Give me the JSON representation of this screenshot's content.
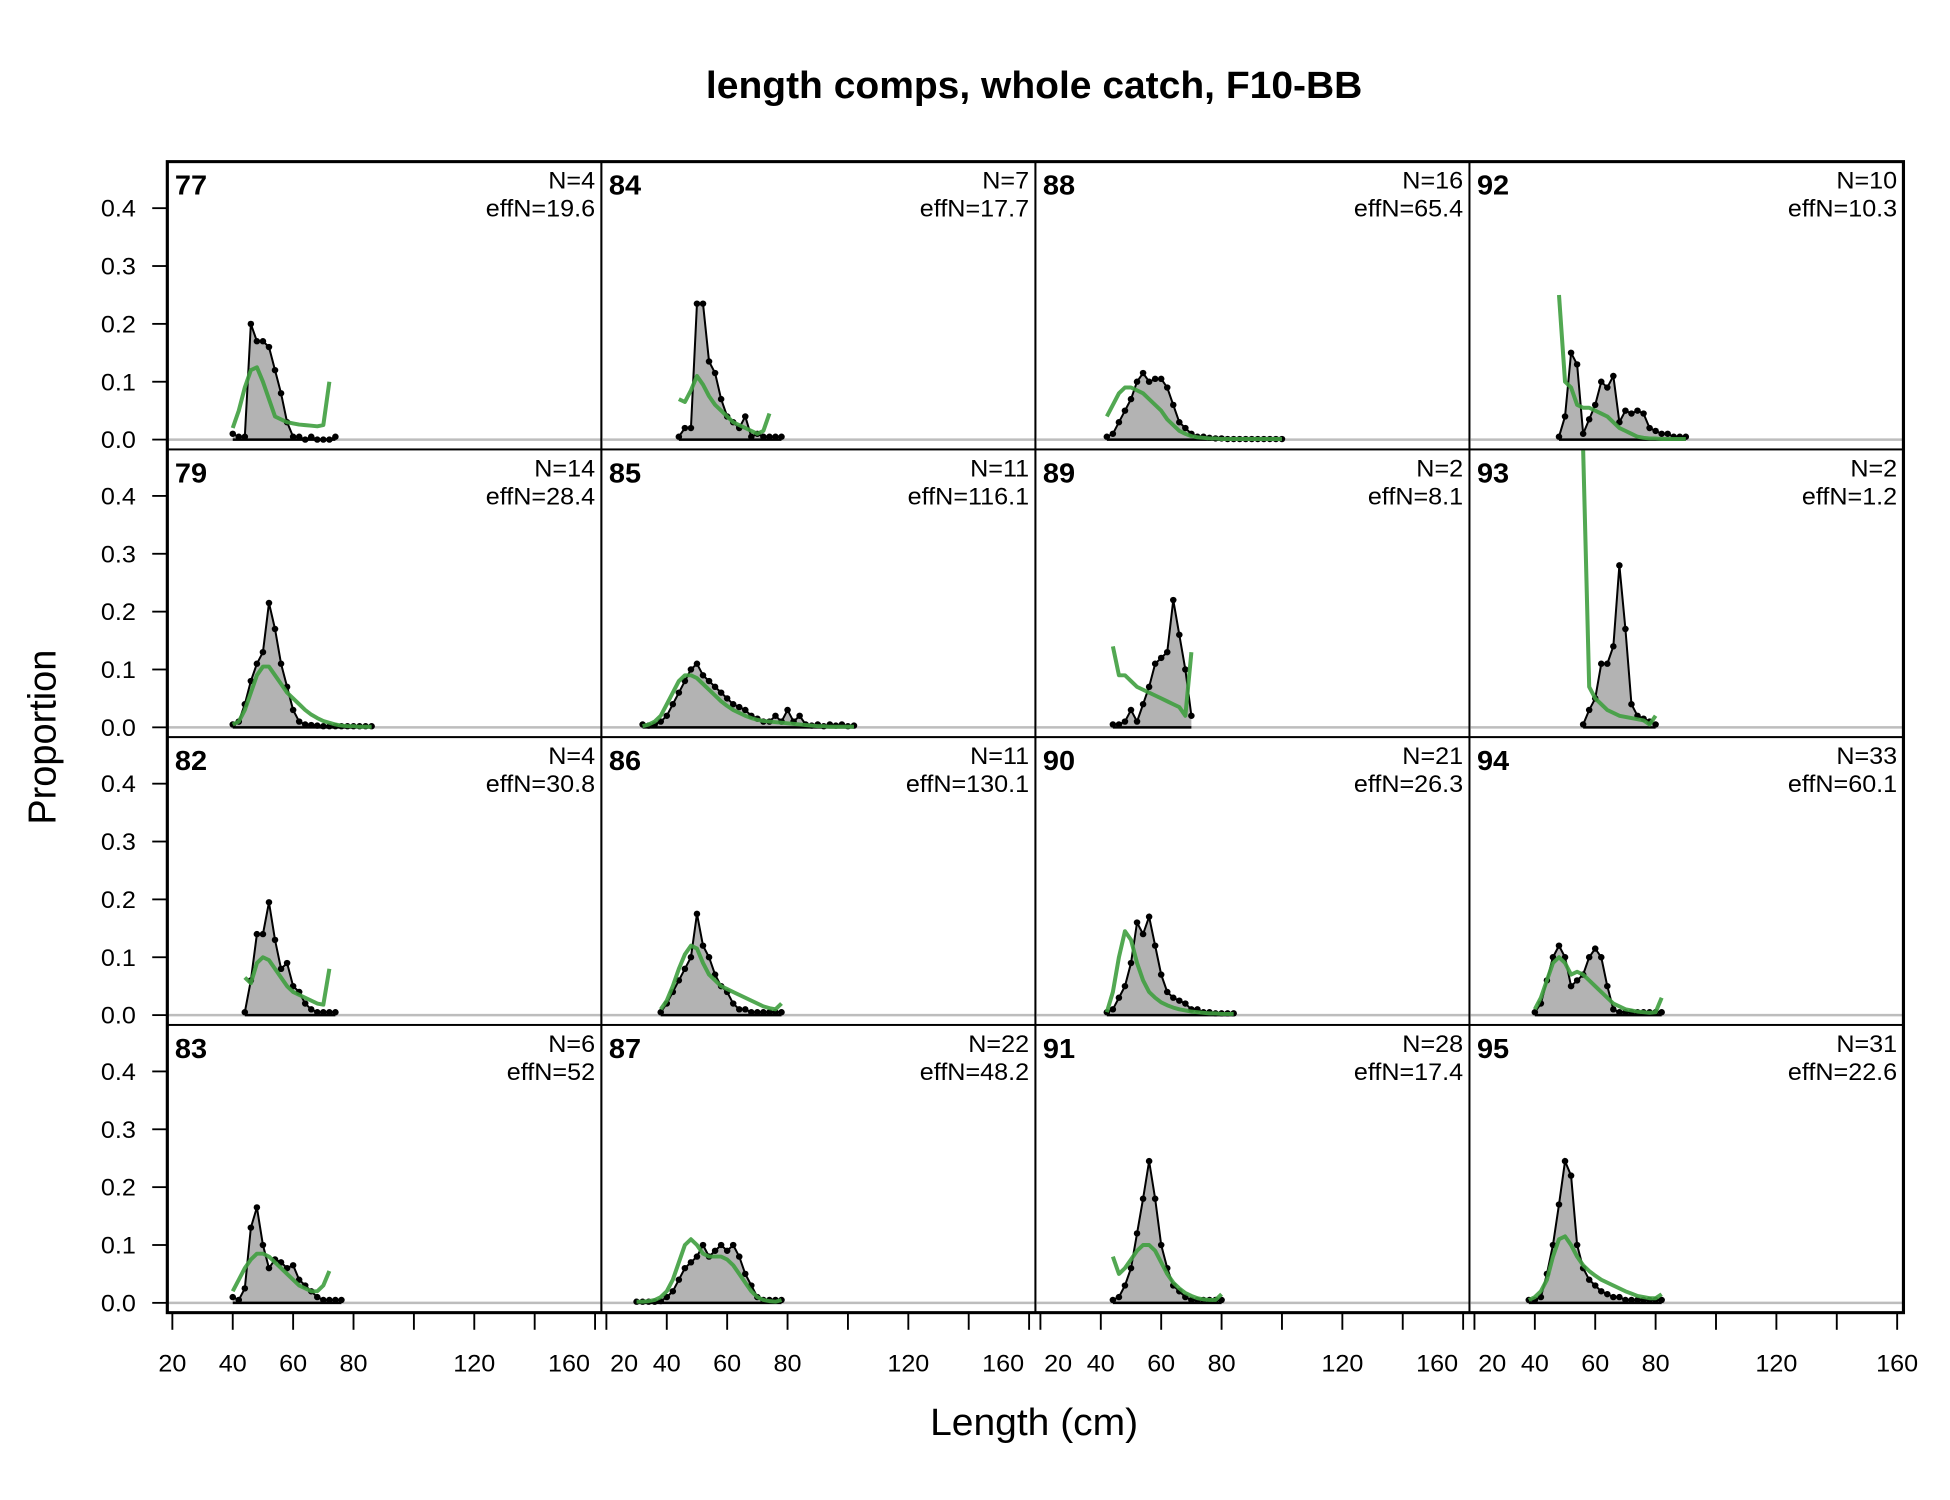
{
  "chart_data": {
    "type": "line",
    "title": "length comps, whole catch, F10-BB",
    "xlabel": "Length (cm)",
    "ylabel": "Proportion",
    "xlim": [
      20,
      160
    ],
    "ylim": [
      0,
      0.48
    ],
    "x_ticks": [
      20,
      40,
      60,
      80,
      100,
      120,
      140,
      160
    ],
    "x_tick_labels": [
      "20",
      "40",
      "60",
      "80",
      "",
      "120",
      "",
      "160"
    ],
    "y_ticks": [
      0.0,
      0.1,
      0.2,
      0.3,
      0.4
    ],
    "y_tick_labels": [
      "0.0",
      "0.1",
      "0.2",
      "0.3",
      "0.4"
    ],
    "series_styles": {
      "observed_fill": "#b3b3b3",
      "observed_line": "#000000",
      "expected_line": "#3f9e3f",
      "zero_line": "#bdbdbd"
    },
    "bin_width": 2,
    "panels": [
      {
        "year": "77",
        "n_label": "N=4",
        "effn_label": "effN=19.6",
        "obs": {
          "start": 40,
          "values": [
            0.01,
            0.005,
            0.005,
            0.2,
            0.17,
            0.17,
            0.16,
            0.12,
            0.08,
            0.03,
            0.005,
            0.005,
            0,
            0.005,
            0,
            0,
            0,
            0.005
          ]
        },
        "exp": {
          "start": 40,
          "values": [
            0.02,
            0.05,
            0.09,
            0.12,
            0.125,
            0.1,
            0.07,
            0.04,
            0.035,
            0.03,
            0.028,
            0.026,
            0.025,
            0.024,
            0.023,
            0.025,
            0.1
          ]
        }
      },
      {
        "year": "84",
        "n_label": "N=7",
        "effn_label": "effN=17.7",
        "obs": {
          "start": 44,
          "values": [
            0.005,
            0.02,
            0.02,
            0.235,
            0.235,
            0.135,
            0.115,
            0.07,
            0.04,
            0.03,
            0.02,
            0.04,
            0.005,
            0.01,
            0.005,
            0.005,
            0.005,
            0.005
          ]
        },
        "exp": {
          "start": 44,
          "values": [
            0.07,
            0.065,
            0.085,
            0.11,
            0.095,
            0.075,
            0.06,
            0.05,
            0.04,
            0.03,
            0.025,
            0.02,
            0.015,
            0.01,
            0.015,
            0.045
          ]
        }
      },
      {
        "year": "88",
        "n_label": "N=16",
        "effn_label": "effN=65.4",
        "obs": {
          "start": 42,
          "values": [
            0.005,
            0.01,
            0.03,
            0.05,
            0.07,
            0.1,
            0.115,
            0.1,
            0.105,
            0.105,
            0.09,
            0.06,
            0.03,
            0.02,
            0.01,
            0.005,
            0.005,
            0.003,
            0.002,
            0.002,
            0.001,
            0.001,
            0.001,
            0.001,
            0.001,
            0.001,
            0.001,
            0.001,
            0.001,
            0.001
          ]
        },
        "exp": {
          "start": 42,
          "values": [
            0.04,
            0.06,
            0.08,
            0.09,
            0.09,
            0.085,
            0.08,
            0.07,
            0.06,
            0.05,
            0.035,
            0.025,
            0.015,
            0.01,
            0.006,
            0.004,
            0.003,
            0.002,
            0.002,
            0.001,
            0.001,
            0.001,
            0.001,
            0.001,
            0.001,
            0.001,
            0.001,
            0.001,
            0.001,
            0.001
          ]
        }
      },
      {
        "year": "92",
        "n_label": "N=10",
        "effn_label": "effN=10.3",
        "obs": {
          "start": 48,
          "values": [
            0.005,
            0.04,
            0.15,
            0.13,
            0.01,
            0.035,
            0.06,
            0.1,
            0.09,
            0.11,
            0.03,
            0.05,
            0.045,
            0.05,
            0.045,
            0.02,
            0.015,
            0.01,
            0.01,
            0.005,
            0.005,
            0.005
          ]
        },
        "exp": {
          "start": 48,
          "values": [
            0.25,
            0.1,
            0.09,
            0.06,
            0.055,
            0.055,
            0.05,
            0.045,
            0.04,
            0.03,
            0.02,
            0.015,
            0.01,
            0.005,
            0.003,
            0.002,
            0.002,
            0.001,
            0.001,
            0.001,
            0.001,
            0.001
          ]
        }
      },
      {
        "year": "79",
        "n_label": "N=14",
        "effn_label": "effN=28.4",
        "obs": {
          "start": 40,
          "values": [
            0.005,
            0.01,
            0.04,
            0.08,
            0.11,
            0.13,
            0.215,
            0.17,
            0.11,
            0.07,
            0.03,
            0.01,
            0.005,
            0.004,
            0.003,
            0.002,
            0.002,
            0.002,
            0.002,
            0.002,
            0.002,
            0.002,
            0.002,
            0.002
          ]
        },
        "exp": {
          "start": 40,
          "values": [
            0.005,
            0.01,
            0.03,
            0.06,
            0.09,
            0.105,
            0.105,
            0.09,
            0.075,
            0.06,
            0.05,
            0.04,
            0.03,
            0.022,
            0.016,
            0.011,
            0.008,
            0.005,
            0.003,
            0.002,
            0.002,
            0.001,
            0.001,
            0.001
          ]
        }
      },
      {
        "year": "85",
        "n_label": "N=11",
        "effn_label": "effN=116.1",
        "obs": {
          "start": 32,
          "values": [
            0.005,
            0.003,
            0.005,
            0.01,
            0.02,
            0.04,
            0.06,
            0.08,
            0.1,
            0.11,
            0.09,
            0.08,
            0.07,
            0.06,
            0.05,
            0.04,
            0.035,
            0.03,
            0.02,
            0.015,
            0.01,
            0.01,
            0.02,
            0.01,
            0.03,
            0.01,
            0.02,
            0.005,
            0.003,
            0.005,
            0.002,
            0.005,
            0.003,
            0.005,
            0.002,
            0.003
          ]
        },
        "exp": {
          "start": 32,
          "values": [
            0.002,
            0.005,
            0.01,
            0.02,
            0.04,
            0.06,
            0.08,
            0.09,
            0.09,
            0.085,
            0.075,
            0.065,
            0.055,
            0.045,
            0.037,
            0.03,
            0.025,
            0.02,
            0.016,
            0.013,
            0.011,
            0.01,
            0.009,
            0.008,
            0.007,
            0.006,
            0.005,
            0.004,
            0.003,
            0.002,
            0.002,
            0.001,
            0.001,
            0.001,
            0.001,
            0.001
          ]
        }
      },
      {
        "year": "89",
        "n_label": "N=2",
        "effn_label": "effN=8.1",
        "obs": {
          "start": 44,
          "values": [
            0.005,
            0.005,
            0.01,
            0.03,
            0.01,
            0.04,
            0.07,
            0.11,
            0.12,
            0.13,
            0.22,
            0.16,
            0.1,
            0.02
          ]
        },
        "exp": {
          "start": 44,
          "values": [
            0.14,
            0.09,
            0.09,
            0.08,
            0.07,
            0.065,
            0.06,
            0.055,
            0.05,
            0.045,
            0.04,
            0.035,
            0.02,
            0.13
          ]
        }
      },
      {
        "year": "93",
        "n_label": "N=2",
        "effn_label": "effN=1.2",
        "obs": {
          "start": 56,
          "values": [
            0.005,
            0.03,
            0.05,
            0.11,
            0.11,
            0.14,
            0.28,
            0.17,
            0.04,
            0.02,
            0.015,
            0.01,
            0.005
          ]
        },
        "exp": {
          "start": 56,
          "values": [
            0.48,
            0.07,
            0.05,
            0.04,
            0.03,
            0.025,
            0.02,
            0.018,
            0.016,
            0.014,
            0.012,
            0.005,
            0.02
          ]
        }
      },
      {
        "year": "82",
        "n_label": "N=4",
        "effn_label": "effN=30.8",
        "obs": {
          "start": 44,
          "values": [
            0.005,
            0.06,
            0.14,
            0.14,
            0.195,
            0.13,
            0.08,
            0.09,
            0.05,
            0.04,
            0.02,
            0.01,
            0.005,
            0.005,
            0.005,
            0.005
          ]
        },
        "exp": {
          "start": 44,
          "values": [
            0.065,
            0.055,
            0.09,
            0.1,
            0.095,
            0.08,
            0.065,
            0.05,
            0.04,
            0.035,
            0.03,
            0.025,
            0.02,
            0.018,
            0.08
          ]
        }
      },
      {
        "year": "86",
        "n_label": "N=11",
        "effn_label": "effN=130.1",
        "obs": {
          "start": 38,
          "values": [
            0.005,
            0.02,
            0.04,
            0.06,
            0.08,
            0.1,
            0.175,
            0.12,
            0.1,
            0.07,
            0.05,
            0.04,
            0.02,
            0.01,
            0.01,
            0.005,
            0.005,
            0.005,
            0.005,
            0.005,
            0.005
          ]
        },
        "exp": {
          "start": 38,
          "values": [
            0.01,
            0.025,
            0.05,
            0.08,
            0.105,
            0.12,
            0.115,
            0.09,
            0.07,
            0.06,
            0.05,
            0.045,
            0.04,
            0.035,
            0.03,
            0.025,
            0.02,
            0.015,
            0.012,
            0.01,
            0.02
          ]
        }
      },
      {
        "year": "90",
        "n_label": "N=21",
        "effn_label": "effN=26.3",
        "obs": {
          "start": 42,
          "values": [
            0.005,
            0.01,
            0.03,
            0.05,
            0.09,
            0.16,
            0.14,
            0.17,
            0.12,
            0.07,
            0.04,
            0.03,
            0.025,
            0.02,
            0.01,
            0.01,
            0.005,
            0.005,
            0.003,
            0.003,
            0.003,
            0.003
          ]
        },
        "exp": {
          "start": 42,
          "values": [
            0.005,
            0.04,
            0.1,
            0.145,
            0.13,
            0.09,
            0.06,
            0.04,
            0.03,
            0.022,
            0.017,
            0.013,
            0.01,
            0.008,
            0.006,
            0.005,
            0.004,
            0.003,
            0.003,
            0.002,
            0.002,
            0.002
          ]
        }
      },
      {
        "year": "94",
        "n_label": "N=33",
        "effn_label": "effN=60.1",
        "obs": {
          "start": 40,
          "values": [
            0.005,
            0.02,
            0.06,
            0.1,
            0.12,
            0.1,
            0.05,
            0.06,
            0.07,
            0.1,
            0.115,
            0.1,
            0.05,
            0.01,
            0.005,
            0.005,
            0.005,
            0.005,
            0.005,
            0.005,
            0.005,
            0.005
          ]
        },
        "exp": {
          "start": 40,
          "values": [
            0.01,
            0.03,
            0.06,
            0.09,
            0.1,
            0.09,
            0.07,
            0.075,
            0.07,
            0.06,
            0.05,
            0.04,
            0.03,
            0.02,
            0.015,
            0.01,
            0.008,
            0.006,
            0.005,
            0.004,
            0.005,
            0.03
          ]
        }
      },
      {
        "year": "83",
        "n_label": "N=6",
        "effn_label": "effN=52",
        "obs": {
          "start": 40,
          "values": [
            0.01,
            0.005,
            0.025,
            0.13,
            0.165,
            0.1,
            0.06,
            0.075,
            0.07,
            0.06,
            0.065,
            0.04,
            0.03,
            0.02,
            0.01,
            0.005,
            0.005,
            0.005,
            0.005
          ]
        },
        "exp": {
          "start": 40,
          "values": [
            0.02,
            0.04,
            0.06,
            0.075,
            0.085,
            0.085,
            0.08,
            0.07,
            0.06,
            0.05,
            0.04,
            0.03,
            0.025,
            0.02,
            0.02,
            0.03,
            0.055
          ]
        }
      },
      {
        "year": "87",
        "n_label": "N=22",
        "effn_label": "effN=48.2",
        "obs": {
          "start": 30,
          "values": [
            0.002,
            0.002,
            0.002,
            0.002,
            0.003,
            0.01,
            0.02,
            0.04,
            0.06,
            0.07,
            0.08,
            0.1,
            0.08,
            0.09,
            0.1,
            0.09,
            0.1,
            0.08,
            0.05,
            0.03,
            0.01,
            0.005,
            0.005,
            0.005,
            0.005
          ]
        },
        "exp": {
          "start": 30,
          "values": [
            0.002,
            0.002,
            0.003,
            0.005,
            0.01,
            0.02,
            0.04,
            0.07,
            0.1,
            0.11,
            0.1,
            0.085,
            0.08,
            0.08,
            0.08,
            0.075,
            0.065,
            0.05,
            0.035,
            0.02,
            0.01,
            0.005,
            0.003,
            0.002,
            0.005
          ]
        }
      },
      {
        "year": "91",
        "n_label": "N=28",
        "effn_label": "effN=17.4",
        "obs": {
          "start": 44,
          "values": [
            0.005,
            0.01,
            0.03,
            0.06,
            0.12,
            0.18,
            0.245,
            0.18,
            0.1,
            0.06,
            0.03,
            0.02,
            0.01,
            0.005,
            0.005,
            0.005,
            0.005,
            0.005,
            0.005
          ]
        },
        "exp": {
          "start": 44,
          "values": [
            0.08,
            0.05,
            0.06,
            0.075,
            0.09,
            0.1,
            0.1,
            0.09,
            0.07,
            0.05,
            0.035,
            0.025,
            0.017,
            0.012,
            0.008,
            0.006,
            0.005,
            0.005,
            0.015
          ]
        }
      },
      {
        "year": "95",
        "n_label": "N=31",
        "effn_label": "effN=22.6",
        "obs": {
          "start": 38,
          "values": [
            0.005,
            0.005,
            0.01,
            0.05,
            0.1,
            0.17,
            0.245,
            0.22,
            0.1,
            0.06,
            0.04,
            0.03,
            0.02,
            0.015,
            0.01,
            0.01,
            0.005,
            0.005,
            0.005,
            0.005,
            0.005,
            0.005,
            0.005
          ]
        },
        "exp": {
          "start": 38,
          "values": [
            0.005,
            0.01,
            0.02,
            0.04,
            0.08,
            0.11,
            0.115,
            0.1,
            0.08,
            0.065,
            0.055,
            0.047,
            0.04,
            0.035,
            0.03,
            0.025,
            0.02,
            0.016,
            0.012,
            0.01,
            0.008,
            0.008,
            0.015
          ]
        }
      }
    ]
  }
}
